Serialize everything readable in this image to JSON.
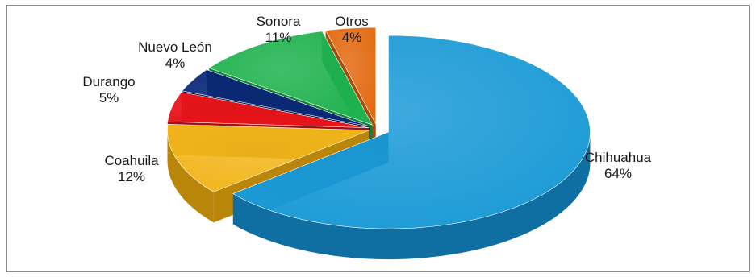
{
  "chart_data": {
    "type": "pie",
    "title": "",
    "categories": [
      "Chihuahua",
      "Coahuila",
      "Durango",
      "Nuevo León",
      "Sonora",
      "Otros"
    ],
    "values": [
      64,
      12,
      5,
      4,
      11,
      4
    ],
    "value_labels": [
      "64%",
      "12%",
      "5%",
      "4%",
      "11%",
      "4%"
    ],
    "colors": [
      "#1b9ad6",
      "#f2b51b",
      "#e8141a",
      "#0a2a78",
      "#1fb24f",
      "#e36a12"
    ],
    "side_colors": [
      "#0f6fa3",
      "#b9860a",
      "#a80d10",
      "#061a4d",
      "#138236",
      "#a84b08"
    ],
    "style": "3d-exploded",
    "legend": "none"
  }
}
